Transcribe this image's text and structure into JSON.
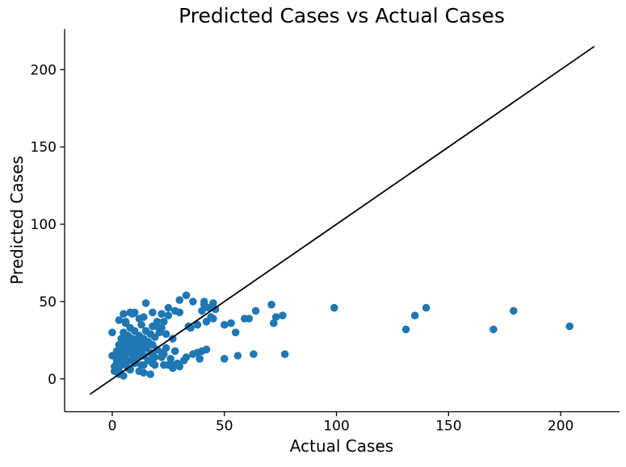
{
  "chart_data": {
    "type": "scatter",
    "title": "Predicted Cases vs Actual Cases",
    "xlabel": "Actual Cases",
    "ylabel": "Predicted Cases",
    "xlim": [
      -21.25,
      226.25
    ],
    "ylim": [
      -21.25,
      226.25
    ],
    "x_ticks": [
      0,
      50,
      100,
      150,
      200
    ],
    "y_ticks": [
      0,
      50,
      100,
      150,
      200
    ],
    "grid": false,
    "legend": false,
    "background_color": "#ffffff",
    "marker_color": "#1f77b4",
    "marker_radius_px": 4.8,
    "identity_line": {
      "x1": -10,
      "y1": -10,
      "x2": 215,
      "y2": 215,
      "color": "#000000"
    },
    "points": [
      [
        0,
        15
      ],
      [
        0,
        30
      ],
      [
        1,
        5
      ],
      [
        1,
        8
      ],
      [
        2,
        10
      ],
      [
        2,
        12
      ],
      [
        2,
        18
      ],
      [
        3,
        3
      ],
      [
        3,
        5
      ],
      [
        3,
        15
      ],
      [
        3,
        22
      ],
      [
        3,
        38
      ],
      [
        4,
        9
      ],
      [
        4,
        19
      ],
      [
        4,
        26
      ],
      [
        5,
        2
      ],
      [
        5,
        13
      ],
      [
        5,
        21
      ],
      [
        5,
        30
      ],
      [
        5,
        42
      ],
      [
        6,
        9
      ],
      [
        6,
        16
      ],
      [
        6,
        24
      ],
      [
        6,
        36
      ],
      [
        6,
        37
      ],
      [
        7,
        7
      ],
      [
        7,
        19
      ],
      [
        7,
        28
      ],
      [
        8,
        6
      ],
      [
        8,
        12
      ],
      [
        8,
        22
      ],
      [
        8,
        33
      ],
      [
        8,
        43
      ],
      [
        9,
        16
      ],
      [
        9,
        26
      ],
      [
        9,
        42
      ],
      [
        10,
        10
      ],
      [
        10,
        20
      ],
      [
        10,
        31
      ],
      [
        10,
        43
      ],
      [
        11,
        14
      ],
      [
        11,
        24
      ],
      [
        12,
        5
      ],
      [
        12,
        18
      ],
      [
        12,
        28
      ],
      [
        12,
        39
      ],
      [
        13,
        9
      ],
      [
        13,
        17
      ],
      [
        13,
        22
      ],
      [
        13,
        35
      ],
      [
        14,
        4
      ],
      [
        14,
        9
      ],
      [
        14,
        15
      ],
      [
        14,
        26
      ],
      [
        14,
        40
      ],
      [
        15,
        20
      ],
      [
        15,
        31
      ],
      [
        15,
        49
      ],
      [
        16,
        12
      ],
      [
        16,
        22
      ],
      [
        16,
        24
      ],
      [
        17,
        3
      ],
      [
        17,
        17
      ],
      [
        17,
        29
      ],
      [
        18,
        10
      ],
      [
        18,
        16
      ],
      [
        18,
        22
      ],
      [
        18,
        34
      ],
      [
        18,
        43
      ],
      [
        19,
        9
      ],
      [
        19,
        14
      ],
      [
        19,
        27
      ],
      [
        20,
        19
      ],
      [
        20,
        34
      ],
      [
        20,
        37
      ],
      [
        21,
        30
      ],
      [
        22,
        14
      ],
      [
        22,
        17
      ],
      [
        22,
        33
      ],
      [
        22,
        42
      ],
      [
        23,
        9
      ],
      [
        23,
        16
      ],
      [
        23,
        37
      ],
      [
        24,
        20
      ],
      [
        24,
        29
      ],
      [
        25,
        9
      ],
      [
        25,
        41
      ],
      [
        25,
        46
      ],
      [
        26,
        10
      ],
      [
        26,
        13
      ],
      [
        27,
        7
      ],
      [
        27,
        26
      ],
      [
        28,
        18
      ],
      [
        28,
        44
      ],
      [
        29,
        10
      ],
      [
        30,
        8
      ],
      [
        30,
        43
      ],
      [
        30,
        51
      ],
      [
        32,
        12
      ],
      [
        33,
        14
      ],
      [
        33,
        54
      ],
      [
        34,
        34
      ],
      [
        35,
        33
      ],
      [
        36,
        16
      ],
      [
        36,
        50
      ],
      [
        38,
        17
      ],
      [
        38,
        35
      ],
      [
        39,
        13
      ],
      [
        40,
        18
      ],
      [
        40,
        44
      ],
      [
        41,
        48
      ],
      [
        41,
        50
      ],
      [
        42,
        19
      ],
      [
        42,
        37
      ],
      [
        43,
        46
      ],
      [
        44,
        40
      ],
      [
        45,
        39
      ],
      [
        45,
        49
      ],
      [
        46,
        45
      ],
      [
        50,
        13
      ],
      [
        50,
        35
      ],
      [
        53,
        36
      ],
      [
        55,
        30
      ],
      [
        56,
        15
      ],
      [
        59,
        39
      ],
      [
        61,
        39
      ],
      [
        63,
        16
      ],
      [
        64,
        44
      ],
      [
        71,
        48
      ],
      [
        72,
        36
      ],
      [
        73,
        40
      ],
      [
        76,
        41
      ],
      [
        77,
        16
      ],
      [
        99,
        46
      ],
      [
        131,
        32
      ],
      [
        135,
        41
      ],
      [
        140,
        46
      ],
      [
        170,
        32
      ],
      [
        179,
        44
      ],
      [
        204,
        34
      ]
    ]
  }
}
